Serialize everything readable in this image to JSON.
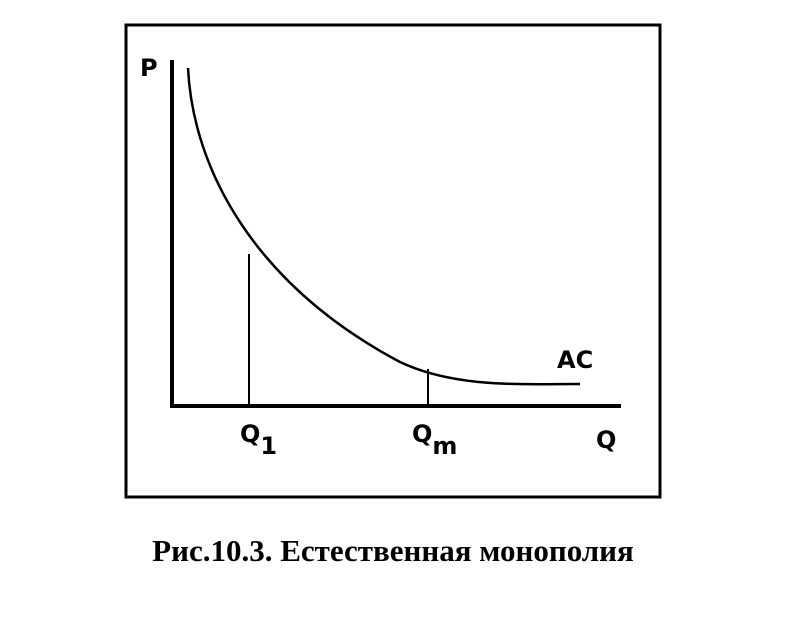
{
  "axes": {
    "y_label": "P",
    "x_label": "Q"
  },
  "curve": {
    "label": "AC"
  },
  "markers": [
    {
      "label": "Q",
      "subscript": "1"
    },
    {
      "label": "Q",
      "subscript": "m"
    }
  ],
  "caption": "Рис.10.3. Естественная монополия"
}
